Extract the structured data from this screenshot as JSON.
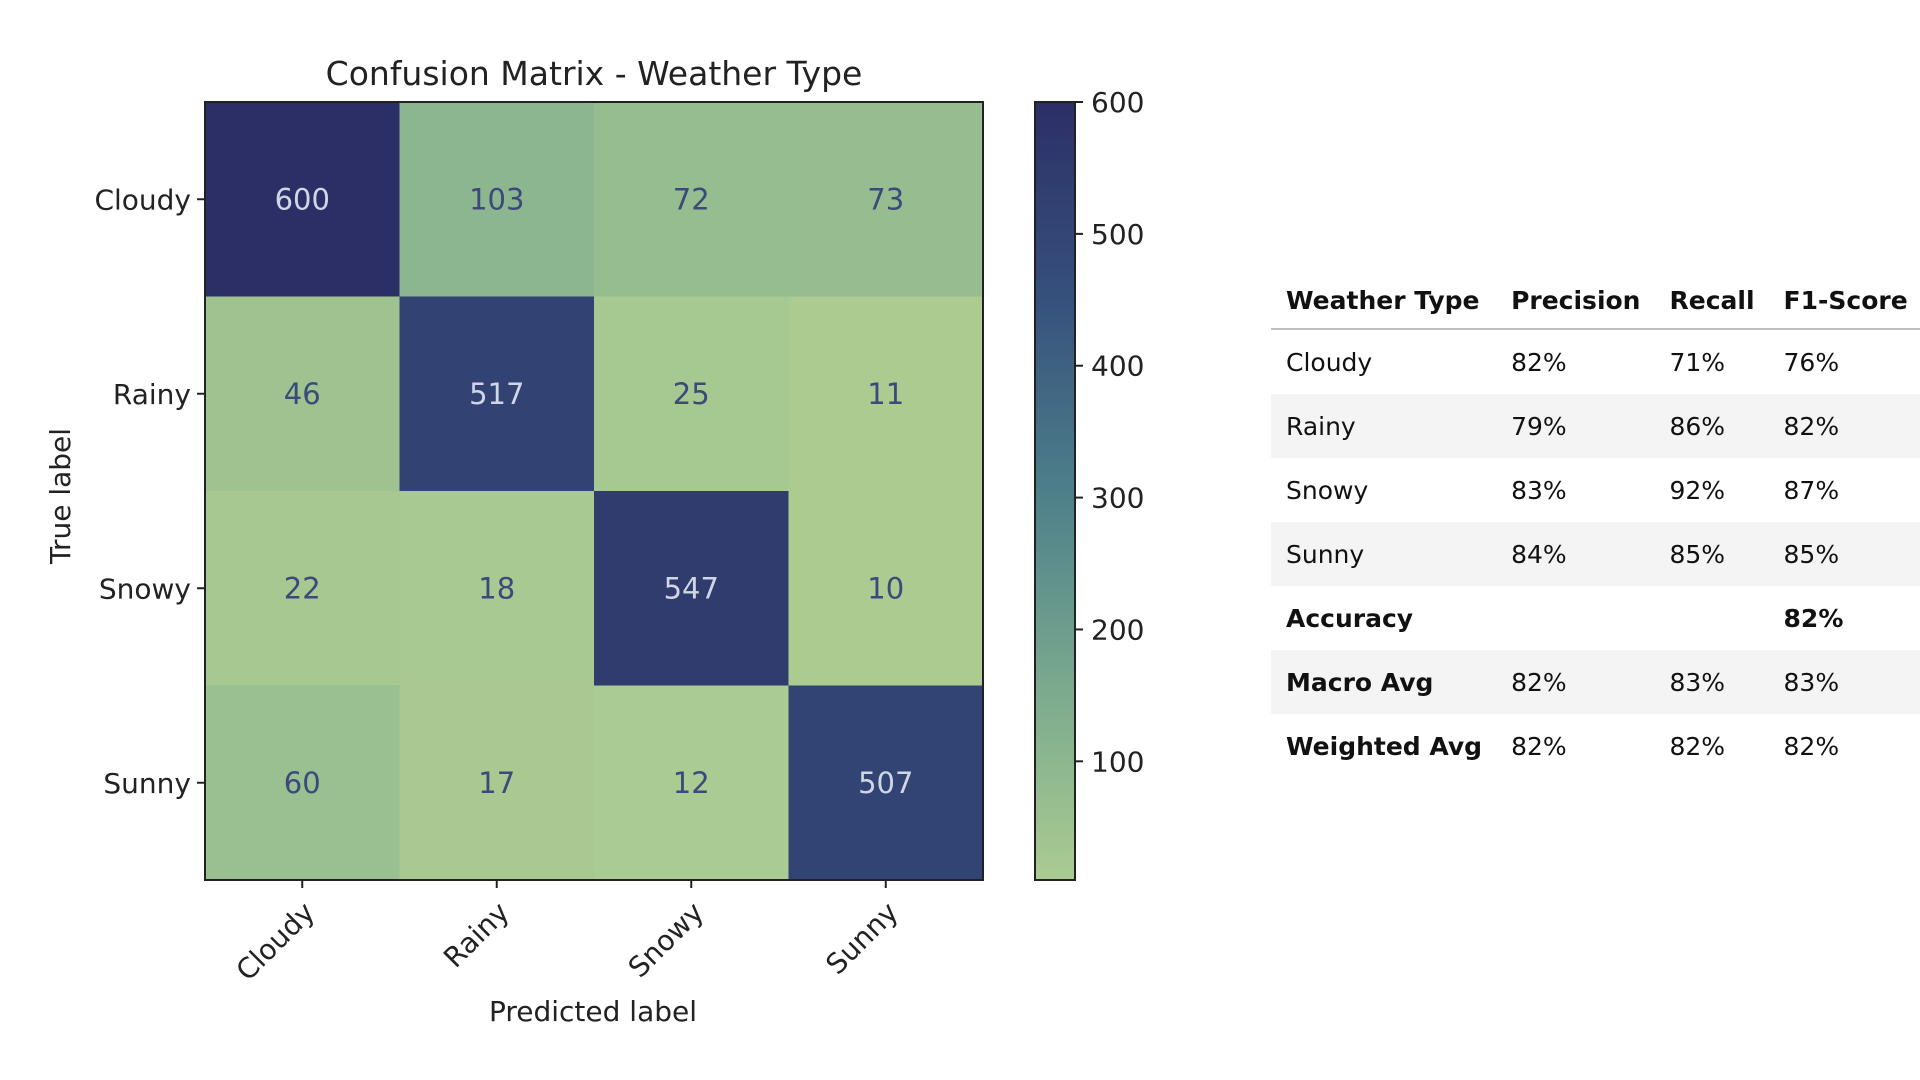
{
  "chart_data": {
    "type": "heatmap",
    "title": "Confusion Matrix - Weather Type",
    "xlabel": "Predicted label",
    "ylabel": "True label",
    "x_categories": [
      "Cloudy",
      "Rainy",
      "Snowy",
      "Sunny"
    ],
    "y_categories": [
      "Cloudy",
      "Rainy",
      "Snowy",
      "Sunny"
    ],
    "values": [
      [
        600,
        103,
        72,
        73
      ],
      [
        46,
        517,
        25,
        11
      ],
      [
        22,
        18,
        547,
        10
      ],
      [
        60,
        17,
        12,
        507
      ]
    ],
    "colorbar": {
      "min": 10,
      "max": 600,
      "ticks": [
        100,
        200,
        300,
        400,
        500,
        600
      ],
      "colors": [
        "#abcb91",
        "#7aa98e",
        "#4d7f8a",
        "#36507c",
        "#2c2f66"
      ]
    },
    "grid": false
  },
  "metrics_table": {
    "headers": [
      "Weather Type",
      "Precision",
      "Recall",
      "F1-Score"
    ],
    "rows": [
      {
        "name": "Cloudy",
        "precision": "82%",
        "recall": "71%",
        "f1": "76%"
      },
      {
        "name": "Rainy",
        "precision": "79%",
        "recall": "86%",
        "f1": "82%"
      },
      {
        "name": "Snowy",
        "precision": "83%",
        "recall": "92%",
        "f1": "87%"
      },
      {
        "name": "Sunny",
        "precision": "84%",
        "recall": "85%",
        "f1": "85%"
      },
      {
        "name": "Accuracy",
        "precision": "",
        "recall": "",
        "f1": "82%",
        "summary": true
      },
      {
        "name": "Macro Avg",
        "precision": "82%",
        "recall": "83%",
        "f1": "83%",
        "summary": true
      },
      {
        "name": "Weighted Avg",
        "precision": "82%",
        "recall": "82%",
        "f1": "82%",
        "summary": true
      }
    ]
  }
}
